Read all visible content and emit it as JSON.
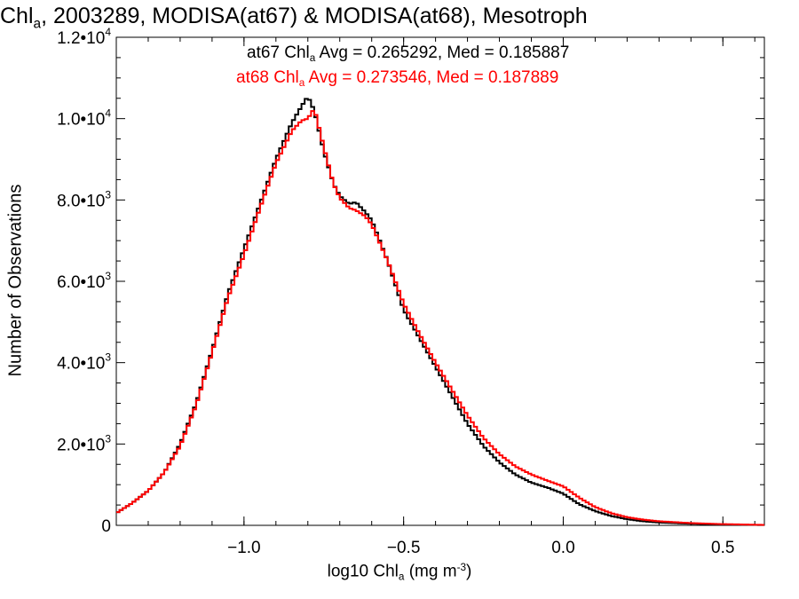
{
  "chart_data": {
    "type": "line",
    "style": "step-histogram",
    "title": {
      "pre": "Chl",
      "sub": "a",
      "post": ", 2003289, MODISA(at67) & MODISA(at68), Mesotroph"
    },
    "xlabel": {
      "pre": "log10 Chl",
      "sub": "a",
      "mid": " (mg m",
      "sup": "-3",
      "post": ")"
    },
    "ylabel": "Number of Observations",
    "xlim": [
      -1.4,
      0.63
    ],
    "ylim": [
      0,
      12000
    ],
    "x_ticks": [
      {
        "value": -1.0,
        "label": "−1.0"
      },
      {
        "value": -0.5,
        "label": "−0.5"
      },
      {
        "value": 0.0,
        "label": "0.0"
      },
      {
        "value": 0.5,
        "label": "0.5"
      }
    ],
    "y_ticks": [
      {
        "value": 0,
        "mant": "0",
        "exp": ""
      },
      {
        "value": 2000,
        "mant": "2.0•10",
        "exp": "3"
      },
      {
        "value": 4000,
        "mant": "4.0•10",
        "exp": "3"
      },
      {
        "value": 6000,
        "mant": "6.0•10",
        "exp": "3"
      },
      {
        "value": 8000,
        "mant": "8.0•10",
        "exp": "3"
      },
      {
        "value": 10000,
        "mant": "1.0•10",
        "exp": "4"
      },
      {
        "value": 12000,
        "mant": "1.2•10",
        "exp": "4"
      }
    ],
    "grid": false,
    "legend": "top-center annotations",
    "annotations": [
      {
        "pre": "at67 Chl",
        "sub": "a",
        "post": " Avg = 0.265292, Med = 0.185887",
        "color": "#000000"
      },
      {
        "pre": "at68 Chl",
        "sub": "a",
        "post": " Avg = 0.273546, Med = 0.187889",
        "color": "#ff0000"
      }
    ],
    "series": [
      {
        "color": "#000000",
        "x": [
          -1.4,
          -1.35,
          -1.3,
          -1.25,
          -1.2,
          -1.15,
          -1.1,
          -1.05,
          -1.0,
          -0.95,
          -0.9,
          -0.85,
          -0.82,
          -0.8,
          -0.78,
          -0.75,
          -0.72,
          -0.7,
          -0.67,
          -0.65,
          -0.62,
          -0.6,
          -0.55,
          -0.5,
          -0.45,
          -0.4,
          -0.35,
          -0.3,
          -0.25,
          -0.2,
          -0.15,
          -0.1,
          -0.05,
          0.0,
          0.05,
          0.1,
          0.15,
          0.2,
          0.25,
          0.3,
          0.4,
          0.5,
          0.6,
          0.63
        ],
        "y": [
          300,
          550,
          850,
          1300,
          2000,
          3000,
          4300,
          5700,
          6800,
          7900,
          9000,
          9900,
          10300,
          10550,
          10200,
          9200,
          8400,
          8100,
          7900,
          7950,
          7700,
          7500,
          6500,
          5300,
          4600,
          3900,
          3200,
          2500,
          1950,
          1550,
          1250,
          1050,
          930,
          780,
          520,
          350,
          230,
          150,
          100,
          70,
          40,
          20,
          10,
          8
        ]
      },
      {
        "color": "#ff0000",
        "x": [
          -1.4,
          -1.35,
          -1.3,
          -1.25,
          -1.2,
          -1.15,
          -1.1,
          -1.05,
          -1.0,
          -0.95,
          -0.9,
          -0.85,
          -0.82,
          -0.8,
          -0.78,
          -0.75,
          -0.72,
          -0.7,
          -0.67,
          -0.65,
          -0.62,
          -0.6,
          -0.55,
          -0.5,
          -0.45,
          -0.4,
          -0.35,
          -0.3,
          -0.25,
          -0.2,
          -0.15,
          -0.1,
          -0.05,
          0.0,
          0.05,
          0.1,
          0.15,
          0.2,
          0.25,
          0.3,
          0.4,
          0.5,
          0.6,
          0.63
        ],
        "y": [
          300,
          550,
          850,
          1300,
          1950,
          2950,
          4250,
          5600,
          6650,
          7800,
          8900,
          9700,
          9950,
          10000,
          10250,
          9300,
          8400,
          8050,
          7800,
          7750,
          7600,
          7400,
          6500,
          5450,
          4700,
          4000,
          3350,
          2700,
          2150,
          1750,
          1450,
          1250,
          1100,
          960,
          680,
          450,
          300,
          200,
          140,
          100,
          55,
          30,
          15,
          10
        ]
      }
    ]
  }
}
